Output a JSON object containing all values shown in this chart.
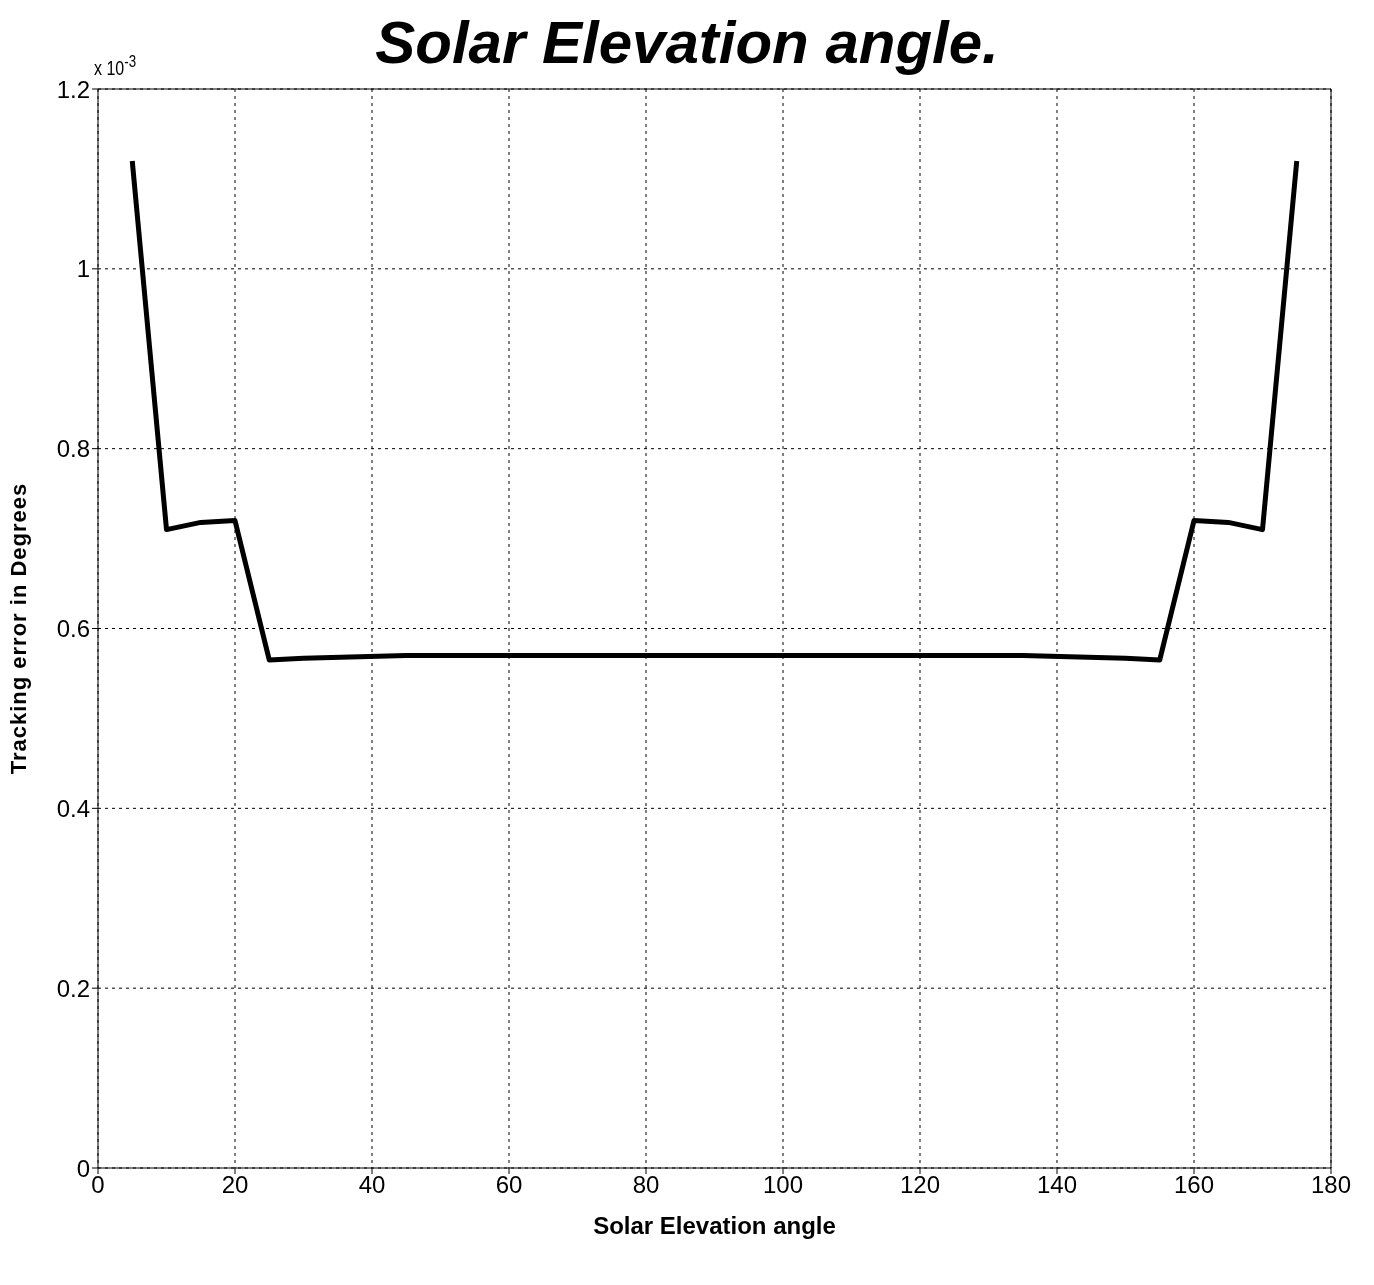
{
  "chart_data": {
    "type": "line",
    "title": "Solar Elevation angle.",
    "xlabel": "Solar Elevation angle",
    "ylabel": "Tracking error in Degrees",
    "annotations": [
      "x 10$^{-3}$"
    ],
    "x": [
      5,
      10,
      15,
      20,
      25,
      30,
      45,
      135,
      150,
      155,
      160,
      165,
      170,
      175
    ],
    "series": [
      {
        "color": "#000000",
        "values": [
          1.12,
          0.71,
          0.718,
          0.72,
          0.565,
          0.567,
          0.57,
          0.57,
          0.567,
          0.565,
          0.72,
          0.718,
          0.71,
          1.12
        ]
      }
    ],
    "xlim": [
      0,
      180
    ],
    "xticks": [
      0,
      20,
      40,
      60,
      80,
      100,
      120,
      140,
      160,
      180
    ],
    "ylim": [
      0,
      1.2
    ],
    "yticks": [
      0,
      0.2,
      0.4,
      0.6,
      0.8,
      1,
      1.2
    ],
    "grid": true,
    "legend": false,
    "marker": "none",
    "line_style": "solid"
  }
}
